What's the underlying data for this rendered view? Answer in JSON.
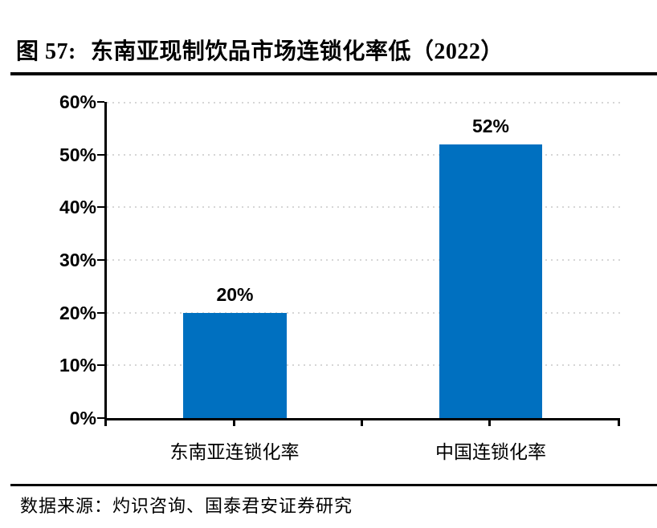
{
  "figure": {
    "title_prefix": "图 57:",
    "title_main": "东南亚现制饮品市场连锁化率低（2022）",
    "source_text": "数据来源：灼识咨询、国泰君安证券研究"
  },
  "chart_data": {
    "type": "bar",
    "title": "东南亚现制饮品市场连锁化率低（2022）",
    "categories": [
      "东南亚连锁化率",
      "中国连锁化率"
    ],
    "values": [
      20,
      52
    ],
    "data_labels": [
      "20%",
      "52%"
    ],
    "y_tick_labels": [
      "60%",
      "50%",
      "40%",
      "30%",
      "20%",
      "10%",
      "0%"
    ],
    "ylim": [
      0,
      60
    ],
    "y_step": 10,
    "unit": "%",
    "grid": "horizontal-dotted",
    "legend": "none",
    "bar_color": "#0070c0",
    "axis_color": "#000000",
    "gridline_color": "#d6d6d6"
  }
}
